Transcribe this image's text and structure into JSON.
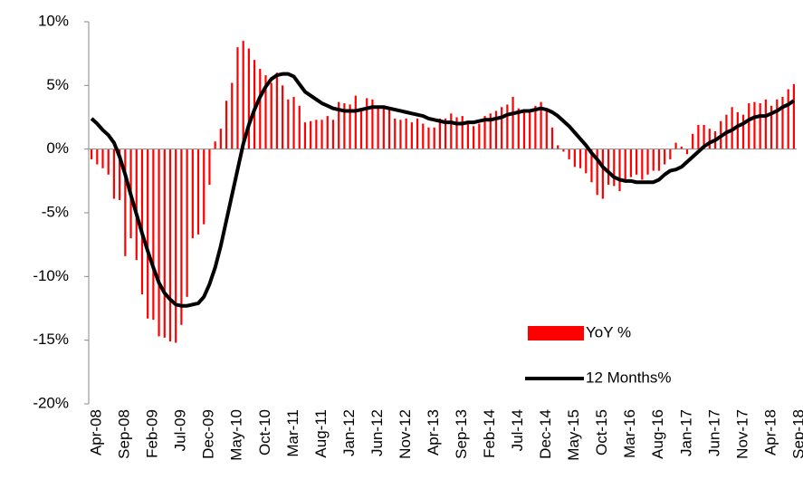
{
  "chart_data": {
    "type": "bar",
    "categories": [
      "Apr-08",
      null,
      null,
      null,
      null,
      "Sep-08",
      null,
      null,
      null,
      null,
      "Feb-09",
      null,
      null,
      null,
      null,
      "Jul-09",
      null,
      null,
      null,
      null,
      "Dec-09",
      null,
      null,
      null,
      null,
      "May-10",
      null,
      null,
      null,
      null,
      "Oct-10",
      null,
      null,
      null,
      null,
      "Mar-11",
      null,
      null,
      null,
      null,
      "Aug-11",
      null,
      null,
      null,
      null,
      "Jan-12",
      null,
      null,
      null,
      null,
      "Jun-12",
      null,
      null,
      null,
      null,
      "Nov-12",
      null,
      null,
      null,
      null,
      "Apr-13",
      null,
      null,
      null,
      null,
      "Sep-13",
      null,
      null,
      null,
      null,
      "Feb-14",
      null,
      null,
      null,
      null,
      "Jul-14",
      null,
      null,
      null,
      null,
      "Dec-14",
      null,
      null,
      null,
      null,
      "May-15",
      null,
      null,
      null,
      null,
      "Oct-15",
      null,
      null,
      null,
      null,
      "Mar-16",
      null,
      null,
      null,
      null,
      "Aug-16",
      null,
      null,
      null,
      null,
      "Jan-17",
      null,
      null,
      null,
      null,
      "Jun-17",
      null,
      null,
      null,
      null,
      "Nov-17",
      null,
      null,
      null,
      null,
      "Apr-18",
      null,
      null,
      null,
      null,
      "Sep-18"
    ],
    "series": [
      {
        "name": "YoY %",
        "type": "bar",
        "color": "#ff0000",
        "values": [
          -0.8,
          -1.2,
          -1.5,
          -2.0,
          -3.9,
          -4.0,
          -8.4,
          -7.0,
          -8.7,
          -11.4,
          -13.3,
          -13.4,
          -14.7,
          -14.8,
          -15.1,
          -15.2,
          -13.8,
          -11.6,
          -7.0,
          -6.7,
          -5.9,
          -2.8,
          0.6,
          1.6,
          3.8,
          5.2,
          8.0,
          8.5,
          7.9,
          7.0,
          6.3,
          5.8,
          5.2,
          6.0,
          5.0,
          3.9,
          4.1,
          3.4,
          2.1,
          2.2,
          2.3,
          2.3,
          2.6,
          2.3,
          3.7,
          3.6,
          3.5,
          4.2,
          3.1,
          4.0,
          3.9,
          3.2,
          3.4,
          3.1,
          2.4,
          2.3,
          2.4,
          2.1,
          2.4,
          2.0,
          1.7,
          1.7,
          2.4,
          2.4,
          2.8,
          2.5,
          2.6,
          2.1,
          1.8,
          2.0,
          2.6,
          2.8,
          3.0,
          3.3,
          3.5,
          4.1,
          3.2,
          3.0,
          3.1,
          3.4,
          3.7,
          3.2,
          1.7,
          0.3,
          -0.2,
          -0.8,
          -1.4,
          -1.5,
          -1.9,
          -2.6,
          -3.6,
          -3.9,
          -2.8,
          -2.9,
          -3.3,
          -2.4,
          -2.2,
          -2.0,
          -2.4,
          -2.0,
          -1.7,
          -1.7,
          -1.2,
          -0.8,
          0.5,
          0.2,
          -0.4,
          1.2,
          1.9,
          1.9,
          1.6,
          1.4,
          2.2,
          2.7,
          3.3,
          2.9,
          2.7,
          3.6,
          3.7,
          3.6,
          3.9,
          3.4,
          3.9,
          4.1,
          4.7,
          5.1
        ]
      },
      {
        "name": "12 Months%",
        "type": "line",
        "color": "#000000",
        "values": [
          2.4,
          2.0,
          1.5,
          1.1,
          0.5,
          -0.6,
          -2.0,
          -3.6,
          -5.1,
          -6.6,
          -8.0,
          -9.3,
          -10.5,
          -11.3,
          -11.8,
          -12.2,
          -12.3,
          -12.3,
          -12.2,
          -12.1,
          -11.6,
          -10.6,
          -9.3,
          -7.6,
          -5.6,
          -3.6,
          -1.6,
          0.4,
          1.9,
          3.1,
          4.1,
          4.9,
          5.5,
          5.8,
          5.9,
          5.9,
          5.7,
          5.1,
          4.5,
          4.2,
          3.9,
          3.6,
          3.4,
          3.2,
          3.1,
          3.0,
          3.0,
          3.0,
          3.1,
          3.2,
          3.3,
          3.3,
          3.3,
          3.2,
          3.1,
          3.0,
          2.9,
          2.8,
          2.7,
          2.6,
          2.4,
          2.3,
          2.2,
          2.1,
          2.1,
          2.0,
          2.0,
          2.1,
          2.1,
          2.2,
          2.3,
          2.3,
          2.4,
          2.5,
          2.7,
          2.8,
          2.9,
          3.0,
          3.0,
          3.1,
          3.2,
          3.1,
          2.9,
          2.6,
          2.2,
          1.8,
          1.3,
          0.8,
          0.3,
          -0.3,
          -0.8,
          -1.4,
          -1.8,
          -2.2,
          -2.4,
          -2.5,
          -2.5,
          -2.6,
          -2.6,
          -2.6,
          -2.6,
          -2.4,
          -2.0,
          -1.7,
          -1.6,
          -1.4,
          -1.0,
          -0.6,
          -0.2,
          0.2,
          0.5,
          0.7,
          1.0,
          1.3,
          1.5,
          1.8,
          2.0,
          2.3,
          2.5,
          2.6,
          2.6,
          2.8,
          3.0,
          3.3,
          3.5,
          3.8
        ]
      }
    ],
    "ylim": [
      -20,
      10
    ],
    "yticks": [
      {
        "value": 10,
        "label": "10%"
      },
      {
        "value": 5,
        "label": "5%"
      },
      {
        "value": 0,
        "label": "0%"
      },
      {
        "value": -5,
        "label": "-5%"
      },
      {
        "value": -10,
        "label": "-10%"
      },
      {
        "value": -15,
        "label": "-15%"
      },
      {
        "value": -20,
        "label": "-20%"
      }
    ],
    "grid": false,
    "legend": "lower right"
  }
}
